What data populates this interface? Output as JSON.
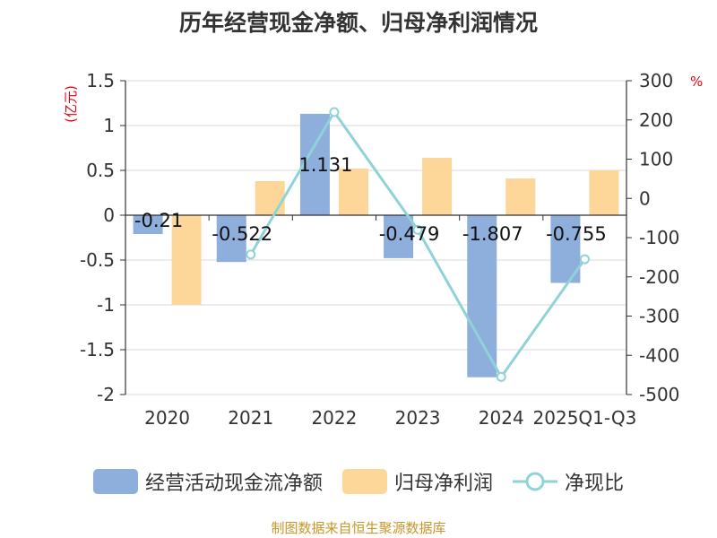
{
  "title": "历年经营现金净额、归母净利润情况",
  "source": "制图数据来自恒生聚源数据库",
  "chart_data": {
    "type": "bar",
    "categories": [
      "2020",
      "2021",
      "2022",
      "2023",
      "2024",
      "2025Q1-Q3"
    ],
    "left_axis": {
      "unit": "(亿元)",
      "ylim": [
        -2,
        1.5
      ],
      "ticks": [
        1.5,
        1,
        0.5,
        0,
        -0.5,
        -1,
        -1.5,
        -2
      ],
      "tick_labels": [
        "1.5",
        "1",
        "0.5",
        "0",
        "-0.5",
        "-1",
        "-1.5",
        "-2"
      ]
    },
    "right_axis": {
      "unit": "%",
      "ylim": [
        -500,
        300
      ],
      "ticks": [
        300,
        200,
        100,
        0,
        -100,
        -200,
        -300,
        -400,
        -500
      ],
      "tick_labels": [
        "300",
        "200",
        "100",
        "0",
        "-100",
        "-200",
        "-300",
        "-400",
        "-500"
      ]
    },
    "series": [
      {
        "name": "经营活动现金流净额",
        "type": "bar",
        "axis": "left",
        "color": "#8eaedb",
        "values": [
          -0.21,
          -0.522,
          1.131,
          -0.479,
          -1.807,
          -0.755
        ],
        "labels": [
          "-0.21",
          "-0.522",
          "1.131",
          "-0.479",
          "-1.807",
          "-0.755"
        ]
      },
      {
        "name": "归母净利润",
        "type": "bar",
        "axis": "left",
        "color": "#fdd69a",
        "values": [
          -1.0,
          0.38,
          0.52,
          0.64,
          0.41,
          0.5
        ]
      },
      {
        "name": "净现比",
        "type": "line",
        "axis": "right",
        "color": "#8fd3d8",
        "values": [
          null,
          -143,
          220,
          -80,
          -455,
          -155
        ]
      }
    ],
    "grid": true,
    "legend_position": "bottom"
  }
}
